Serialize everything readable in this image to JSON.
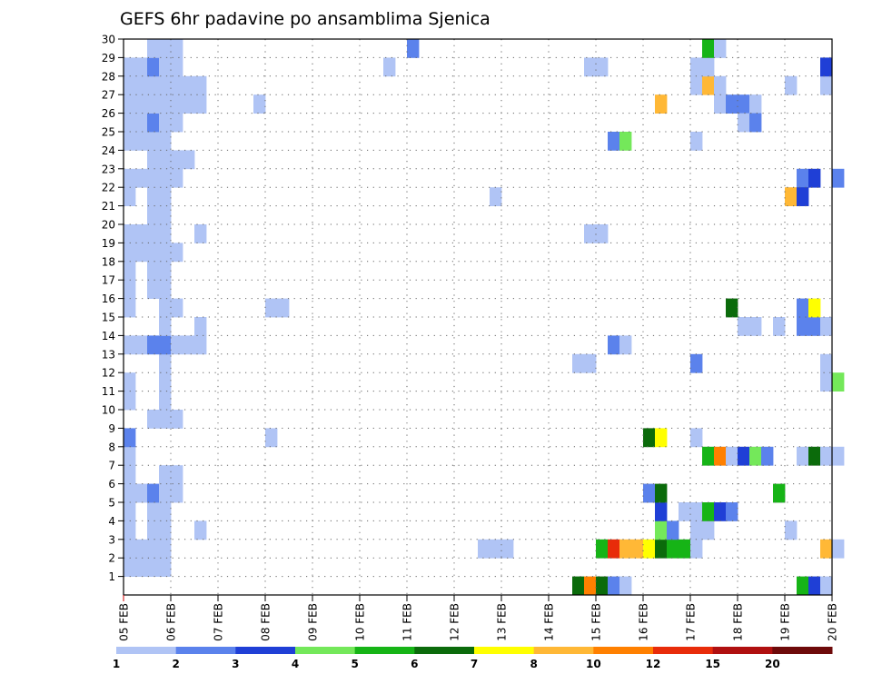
{
  "chart_data": {
    "type": "heatmap",
    "title": "GEFS 6hr padavine po ansamblima Sjenica",
    "x_ticks": [
      "05 FEB",
      "06 FEB",
      "07 FEB",
      "08 FEB",
      "09 FEB",
      "10 FEB",
      "11 FEB",
      "12 FEB",
      "13 FEB",
      "14 FEB",
      "15 FEB",
      "16 FEB",
      "17 FEB",
      "18 FEB",
      "19 FEB",
      "20 FEB"
    ],
    "y_ticks": [
      "1",
      "2",
      "3",
      "4",
      "5",
      "6",
      "7",
      "8",
      "9",
      "10",
      "11",
      "12",
      "13",
      "14",
      "15",
      "16",
      "17",
      "18",
      "19",
      "20",
      "21",
      "22",
      "23",
      "24",
      "25",
      "26",
      "27",
      "28",
      "29",
      "30"
    ],
    "x_range_days": [
      0,
      15
    ],
    "y_range": [
      0,
      30
    ],
    "grid": true,
    "colorbar": {
      "labels": [
        "1",
        "2",
        "3",
        "4",
        "5",
        "6",
        "7",
        "8",
        "10",
        "12",
        "15",
        "20"
      ],
      "colors": [
        "#b0c4f5",
        "#5b82ec",
        "#1f3fd6",
        "#74e85a",
        "#16b416",
        "#0b6b0b",
        "#ffff00",
        "#ffb836",
        "#ff8000",
        "#e82c0a",
        "#b01010",
        "#6e0a0a"
      ]
    },
    "cells": [
      [
        0,
        1,
        1
      ],
      [
        0.25,
        1,
        1
      ],
      [
        0.5,
        1,
        1
      ],
      [
        0.75,
        1,
        1
      ],
      [
        0,
        2,
        1
      ],
      [
        0.25,
        2,
        1
      ],
      [
        0.5,
        2,
        1
      ],
      [
        0.75,
        2,
        1
      ],
      [
        0,
        3,
        1
      ],
      [
        0.5,
        3,
        1
      ],
      [
        0.75,
        3,
        1
      ],
      [
        1.5,
        3,
        1
      ],
      [
        0,
        4,
        1
      ],
      [
        0.5,
        4,
        1
      ],
      [
        0.75,
        4,
        1
      ],
      [
        0,
        5,
        1
      ],
      [
        0.25,
        5,
        1
      ],
      [
        0.5,
        5,
        2
      ],
      [
        0.75,
        5,
        1
      ],
      [
        1,
        5,
        1
      ],
      [
        0,
        6,
        1
      ],
      [
        0.75,
        6,
        1
      ],
      [
        1,
        6,
        1
      ],
      [
        0,
        7,
        1
      ],
      [
        0,
        8,
        2
      ],
      [
        3,
        8,
        1
      ],
      [
        0.5,
        9,
        1
      ],
      [
        0.75,
        9,
        1
      ],
      [
        1,
        9,
        1
      ],
      [
        0,
        10,
        1
      ],
      [
        0.75,
        10,
        1
      ],
      [
        0,
        11,
        1
      ],
      [
        0.75,
        11,
        1
      ],
      [
        0.75,
        12,
        1
      ],
      [
        0,
        13,
        1
      ],
      [
        0.25,
        13,
        1
      ],
      [
        0.5,
        13,
        2
      ],
      [
        0.75,
        13,
        2
      ],
      [
        1,
        13,
        1
      ],
      [
        1.25,
        13,
        1
      ],
      [
        1.5,
        13,
        1
      ],
      [
        0.75,
        14,
        1
      ],
      [
        1.5,
        14,
        1
      ],
      [
        0,
        15,
        1
      ],
      [
        0.75,
        15,
        1
      ],
      [
        1,
        15,
        1
      ],
      [
        3,
        15,
        1
      ],
      [
        3.25,
        15,
        1
      ],
      [
        0,
        16,
        1
      ],
      [
        0.5,
        16,
        1
      ],
      [
        0.75,
        16,
        1
      ],
      [
        0,
        17,
        1
      ],
      [
        0.5,
        17,
        1
      ],
      [
        0.75,
        17,
        1
      ],
      [
        0,
        18,
        1
      ],
      [
        0.25,
        18,
        1
      ],
      [
        0.5,
        18,
        1
      ],
      [
        0.75,
        18,
        1
      ],
      [
        1,
        18,
        1
      ],
      [
        0,
        19,
        1
      ],
      [
        0.25,
        19,
        1
      ],
      [
        0.5,
        19,
        1
      ],
      [
        0.75,
        19,
        1
      ],
      [
        1.5,
        19,
        1
      ],
      [
        0.5,
        20,
        1
      ],
      [
        0.75,
        20,
        1
      ],
      [
        0,
        21,
        1
      ],
      [
        0.5,
        21,
        1
      ],
      [
        0.75,
        21,
        1
      ],
      [
        0,
        22,
        1
      ],
      [
        0.25,
        22,
        1
      ],
      [
        0.5,
        22,
        1
      ],
      [
        0.75,
        22,
        1
      ],
      [
        1,
        22,
        1
      ],
      [
        0.5,
        23,
        1
      ],
      [
        0.75,
        23,
        1
      ],
      [
        1,
        23,
        1
      ],
      [
        1.25,
        23,
        1
      ],
      [
        0,
        24,
        1
      ],
      [
        0.25,
        24,
        1
      ],
      [
        0.5,
        24,
        1
      ],
      [
        0.75,
        24,
        1
      ],
      [
        0,
        25,
        1
      ],
      [
        0.25,
        25,
        1
      ],
      [
        0.5,
        25,
        2
      ],
      [
        0.75,
        25,
        1
      ],
      [
        1,
        25,
        1
      ],
      [
        0,
        26,
        1
      ],
      [
        0.25,
        26,
        1
      ],
      [
        0.5,
        26,
        1
      ],
      [
        0.75,
        26,
        1
      ],
      [
        1,
        26,
        1
      ],
      [
        1.25,
        26,
        1
      ],
      [
        1.5,
        26,
        1
      ],
      [
        2.75,
        26,
        1
      ],
      [
        0,
        27,
        1
      ],
      [
        0.25,
        27,
        1
      ],
      [
        0.5,
        27,
        1
      ],
      [
        0.75,
        27,
        1
      ],
      [
        1,
        27,
        1
      ],
      [
        1.25,
        27,
        1
      ],
      [
        1.5,
        27,
        1
      ],
      [
        0,
        28,
        1
      ],
      [
        0.25,
        28,
        1
      ],
      [
        0.5,
        28,
        2
      ],
      [
        0.75,
        28,
        1
      ],
      [
        1,
        28,
        1
      ],
      [
        5.5,
        28,
        1
      ],
      [
        0.5,
        29,
        1
      ],
      [
        0.75,
        29,
        1
      ],
      [
        1,
        29,
        1
      ],
      [
        6,
        29,
        2
      ],
      [
        7.75,
        21,
        1
      ],
      [
        7.5,
        2,
        1
      ],
      [
        7.75,
        2,
        1
      ],
      [
        8,
        2,
        1
      ],
      [
        9.5,
        0,
        6
      ],
      [
        9.75,
        0,
        9
      ],
      [
        10,
        0,
        6
      ],
      [
        10.25,
        0,
        2
      ],
      [
        10.5,
        0,
        1
      ],
      [
        9.5,
        12,
        1
      ],
      [
        9.75,
        12,
        1
      ],
      [
        10.25,
        13,
        2
      ],
      [
        10.5,
        13,
        1
      ],
      [
        9.75,
        19,
        1
      ],
      [
        10,
        19,
        1
      ],
      [
        10.25,
        24,
        2
      ],
      [
        10.5,
        24,
        4
      ],
      [
        9.75,
        28,
        1
      ],
      [
        10,
        28,
        1
      ],
      [
        10,
        2,
        5
      ],
      [
        10.25,
        2,
        10
      ],
      [
        10.5,
        2,
        8
      ],
      [
        10.75,
        2,
        8
      ],
      [
        11,
        2,
        7
      ],
      [
        11.25,
        2,
        6
      ],
      [
        11.5,
        2,
        5
      ],
      [
        11.75,
        2,
        5
      ],
      [
        12,
        2,
        1
      ],
      [
        11.25,
        3,
        4
      ],
      [
        11.5,
        3,
        2
      ],
      [
        12,
        3,
        1
      ],
      [
        12.25,
        3,
        1
      ],
      [
        11.25,
        4,
        3
      ],
      [
        11.75,
        4,
        1
      ],
      [
        12,
        4,
        1
      ],
      [
        12.25,
        4,
        5
      ],
      [
        12.5,
        4,
        3
      ],
      [
        12.75,
        4,
        2
      ],
      [
        11,
        5,
        2
      ],
      [
        11.25,
        5,
        6
      ],
      [
        13.75,
        5,
        5
      ],
      [
        12.25,
        7,
        5
      ],
      [
        12.5,
        7,
        9
      ],
      [
        12.75,
        7,
        1
      ],
      [
        13,
        7,
        3
      ],
      [
        13.25,
        7,
        4
      ],
      [
        13.5,
        7,
        2
      ],
      [
        11,
        8,
        6
      ],
      [
        11.25,
        8,
        7
      ],
      [
        12,
        8,
        1
      ],
      [
        12,
        12,
        2
      ],
      [
        13,
        14,
        1
      ],
      [
        13.25,
        14,
        1
      ],
      [
        13.75,
        14,
        1
      ],
      [
        14.25,
        14,
        2
      ],
      [
        14.5,
        14,
        2
      ],
      [
        14.75,
        14,
        1
      ],
      [
        12.75,
        15,
        6
      ],
      [
        11.25,
        26,
        8
      ],
      [
        12,
        24,
        1
      ],
      [
        12.5,
        26,
        1
      ],
      [
        12.75,
        26,
        2
      ],
      [
        13,
        26,
        2
      ],
      [
        13.25,
        26,
        1
      ],
      [
        13,
        25,
        1
      ],
      [
        13.25,
        25,
        2
      ],
      [
        12,
        27,
        1
      ],
      [
        12.25,
        27,
        8
      ],
      [
        12.5,
        27,
        1
      ],
      [
        12,
        28,
        1
      ],
      [
        12.25,
        28,
        1
      ],
      [
        12.25,
        29,
        5
      ],
      [
        12.5,
        29,
        1
      ],
      [
        14.25,
        0,
        5
      ],
      [
        14.5,
        0,
        3
      ],
      [
        14.75,
        0,
        1
      ],
      [
        14.75,
        2,
        8
      ],
      [
        15,
        2,
        1
      ],
      [
        14,
        3,
        1
      ],
      [
        14.25,
        7,
        1
      ],
      [
        14.5,
        7,
        6
      ],
      [
        14.75,
        7,
        1
      ],
      [
        15,
        7,
        1
      ],
      [
        14.75,
        11,
        1
      ],
      [
        15,
        11,
        4
      ],
      [
        14.75,
        12,
        1
      ],
      [
        14.25,
        15,
        2
      ],
      [
        14.5,
        15,
        7
      ],
      [
        14.25,
        22,
        2
      ],
      [
        14.5,
        22,
        3
      ],
      [
        14,
        21,
        8
      ],
      [
        14.25,
        21,
        3
      ],
      [
        15,
        22,
        2
      ],
      [
        14,
        27,
        1
      ],
      [
        14.75,
        27,
        1
      ],
      [
        14.75,
        28,
        3
      ]
    ]
  }
}
